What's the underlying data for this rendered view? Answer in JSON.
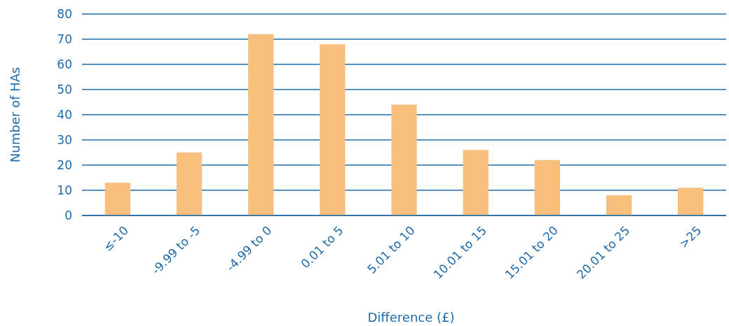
{
  "chart_data": {
    "type": "bar",
    "xlabel": "Difference (£)",
    "ylabel": "Number of HAs",
    "categories": [
      "≤-10",
      "-9.99 to -5",
      "-4.99 to 0",
      "0.01 to 5",
      "5.01 to 10",
      "10.01 to 15",
      "15.01 to 20",
      "20.01 to 25",
      ">25"
    ],
    "values": [
      13,
      25,
      72,
      68,
      44,
      26,
      22,
      8,
      11
    ],
    "color": "#f7be7e",
    "ylim": [
      0,
      80
    ],
    "yticks": [
      0,
      10,
      20,
      30,
      40,
      50,
      60,
      70,
      80
    ],
    "grid": "y"
  }
}
